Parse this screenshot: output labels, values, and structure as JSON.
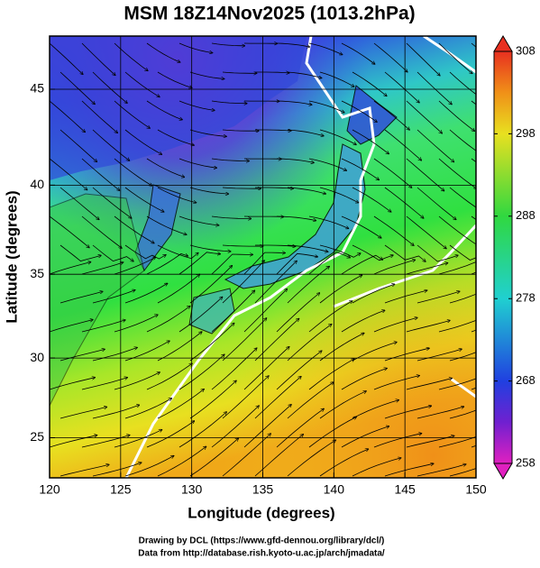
{
  "title": "MSM 18Z14Nov2025 (1013.2hPa)",
  "x_axis": {
    "label": "Longitude (degrees)",
    "lim": [
      120,
      150
    ],
    "ticks": [
      120,
      125,
      130,
      135,
      140,
      145,
      150
    ]
  },
  "y_axis": {
    "label": "Latitude  (degrees)",
    "lim": [
      22.4,
      47.6
    ],
    "ticks": [
      25,
      30,
      35,
      40,
      45
    ]
  },
  "colorbar": {
    "lim": [
      258,
      308
    ],
    "ticks": [
      258,
      268,
      278,
      288,
      298,
      308
    ]
  },
  "credits": [
    "Drawing by DCL (https://www.gfd-dennou.org/library/dcl/)",
    "Data from http://database.rish.kyoto-u.ac.jp/arch/jmadata/"
  ]
}
